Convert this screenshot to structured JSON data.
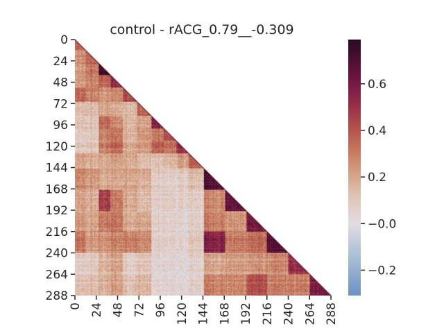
{
  "chart_data": {
    "type": "heatmap",
    "title": "control - rACG_0.79__-0.309",
    "n": 288,
    "mask": "upper-triangle",
    "x_ticks": [
      "0",
      "24",
      "48",
      "72",
      "96",
      "120",
      "144",
      "168",
      "192",
      "216",
      "240",
      "264",
      "288"
    ],
    "y_ticks": [
      "0",
      "24",
      "48",
      "72",
      "96",
      "120",
      "144",
      "168",
      "192",
      "216",
      "240",
      "264",
      "288"
    ],
    "colorbar": {
      "vmin": -0.309,
      "vmax": 0.79,
      "ticks": [
        -0.2,
        0.0,
        0.2,
        0.4,
        0.6
      ],
      "tick_labels": [
        "−0.2",
        "−0.0",
        "0.2",
        "0.4",
        "0.6"
      ],
      "colormap": "twilight_shifted (blue → white → red → dark purple)"
    },
    "blocks": [
      {
        "start": 0,
        "end": 12
      },
      {
        "start": 12,
        "end": 27
      },
      {
        "start": 27,
        "end": 40
      },
      {
        "start": 40,
        "end": 54
      },
      {
        "start": 54,
        "end": 70
      },
      {
        "start": 70,
        "end": 86
      },
      {
        "start": 86,
        "end": 100
      },
      {
        "start": 100,
        "end": 114
      },
      {
        "start": 114,
        "end": 128
      },
      {
        "start": 128,
        "end": 145
      },
      {
        "start": 145,
        "end": 169
      },
      {
        "start": 169,
        "end": 193
      },
      {
        "start": 193,
        "end": 216
      },
      {
        "start": 216,
        "end": 240
      },
      {
        "start": 240,
        "end": 264
      },
      {
        "start": 264,
        "end": 288
      }
    ],
    "block_diagonal_values": [
      0.33,
      0.35,
      0.74,
      0.52,
      0.45,
      0.36,
      0.55,
      0.42,
      0.5,
      0.38,
      0.7,
      0.64,
      0.6,
      0.66,
      0.5,
      0.6
    ],
    "block_offdiag_values": [
      [
        0.33,
        0,
        0,
        0,
        0,
        0,
        0,
        0,
        0,
        0,
        0,
        0,
        0,
        0,
        0,
        0
      ],
      [
        0.24,
        0.35,
        0,
        0,
        0,
        0,
        0,
        0,
        0,
        0,
        0,
        0,
        0,
        0,
        0,
        0
      ],
      [
        0.22,
        0.32,
        0.74,
        0,
        0,
        0,
        0,
        0,
        0,
        0,
        0,
        0,
        0,
        0,
        0,
        0
      ],
      [
        0.22,
        0.28,
        0.36,
        0.52,
        0,
        0,
        0,
        0,
        0,
        0,
        0,
        0,
        0,
        0,
        0,
        0
      ],
      [
        0.35,
        0.3,
        0.25,
        0.28,
        0.45,
        0,
        0,
        0,
        0,
        0,
        0,
        0,
        0,
        0,
        0,
        0
      ],
      [
        0.12,
        0.14,
        0.2,
        0.18,
        0.16,
        0.36,
        0,
        0,
        0,
        0,
        0,
        0,
        0,
        0,
        0,
        0
      ],
      [
        0.1,
        0.1,
        0.34,
        0.26,
        0.16,
        0.2,
        0.55,
        0,
        0,
        0,
        0,
        0,
        0,
        0,
        0,
        0
      ],
      [
        0.08,
        0.1,
        0.3,
        0.32,
        0.18,
        0.24,
        0.3,
        0.42,
        0,
        0,
        0,
        0,
        0,
        0,
        0,
        0
      ],
      [
        0.08,
        0.1,
        0.3,
        0.35,
        0.2,
        0.22,
        0.36,
        0.32,
        0.5,
        0,
        0,
        0,
        0,
        0,
        0,
        0
      ],
      [
        0.2,
        0.18,
        0.2,
        0.22,
        0.2,
        0.14,
        0.12,
        0.16,
        0.22,
        0.38,
        0,
        0,
        0,
        0,
        0,
        0
      ],
      [
        0.26,
        0.24,
        0.2,
        0.2,
        0.22,
        0.18,
        0.08,
        0.08,
        0.08,
        0.14,
        0.7,
        0,
        0,
        0,
        0,
        0
      ],
      [
        0.2,
        0.18,
        0.46,
        0.3,
        0.2,
        0.14,
        0.06,
        0.08,
        0.06,
        0.08,
        0.28,
        0.64,
        0,
        0,
        0,
        0
      ],
      [
        0.22,
        0.2,
        0.3,
        0.32,
        0.2,
        0.2,
        0.06,
        0.06,
        0.04,
        0.08,
        0.3,
        0.24,
        0.6,
        0,
        0,
        0
      ],
      [
        0.3,
        0.22,
        0.24,
        0.28,
        0.3,
        0.26,
        0.06,
        0.06,
        0.04,
        0.1,
        0.56,
        0.3,
        0.34,
        0.66,
        0,
        0
      ],
      [
        0.06,
        0.08,
        0.16,
        0.2,
        0.08,
        0.1,
        0.03,
        0.04,
        0.02,
        0.06,
        0.2,
        0.22,
        0.24,
        0.26,
        0.5,
        0
      ],
      [
        0.12,
        0.14,
        0.18,
        0.22,
        0.14,
        0.16,
        0.04,
        0.05,
        0.03,
        0.08,
        0.3,
        0.28,
        0.42,
        0.3,
        0.3,
        0.6
      ]
    ]
  }
}
